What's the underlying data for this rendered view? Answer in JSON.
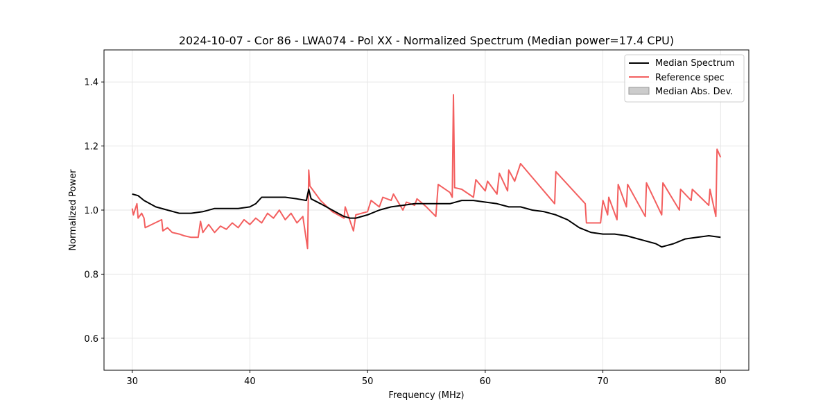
{
  "chart_data": {
    "type": "line",
    "title": "2024-10-07 - Cor 86 - LWA074 - Pol XX - Normalized Spectrum (Median power=17.4 CPU)",
    "xlabel": "Frequency (MHz)",
    "ylabel": "Normalized Power",
    "xlim": [
      27.6,
      82.4
    ],
    "ylim": [
      0.5,
      1.5
    ],
    "xticks": [
      30,
      40,
      50,
      60,
      70,
      80
    ],
    "yticks": [
      0.6,
      0.8,
      1.0,
      1.2,
      1.4
    ],
    "xtick_labels": [
      "30",
      "40",
      "50",
      "60",
      "70",
      "80"
    ],
    "ytick_labels": [
      "0.6",
      "0.8",
      "1.0",
      "1.2",
      "1.4"
    ],
    "grid": true,
    "legend_position": "top-right",
    "legend": [
      "Median Spectrum",
      "Reference spec",
      "Median Abs. Dev."
    ],
    "series": [
      {
        "name": "Median Spectrum",
        "color": "#000000",
        "x": [
          30,
          30.5,
          31,
          31.5,
          32,
          33,
          34,
          35,
          36,
          37,
          38,
          39,
          40,
          40.5,
          41,
          42,
          43,
          44,
          44.8,
          45,
          45.2,
          46,
          47,
          48,
          48.5,
          49,
          50,
          51,
          52,
          53,
          54,
          55,
          56,
          57,
          58,
          59,
          60,
          61,
          62,
          63,
          64,
          65,
          66,
          67,
          68,
          69,
          70,
          71,
          72,
          73,
          74,
          74.5,
          75,
          75.5,
          76,
          77,
          78,
          79,
          80
        ],
        "y": [
          1.05,
          1.045,
          1.03,
          1.02,
          1.01,
          1.0,
          0.99,
          0.99,
          0.995,
          1.005,
          1.005,
          1.005,
          1.01,
          1.02,
          1.04,
          1.04,
          1.04,
          1.035,
          1.03,
          1.065,
          1.035,
          1.02,
          1.0,
          0.98,
          0.975,
          0.975,
          0.985,
          1.0,
          1.01,
          1.015,
          1.02,
          1.02,
          1.02,
          1.02,
          1.03,
          1.03,
          1.025,
          1.02,
          1.01,
          1.01,
          1.0,
          0.995,
          0.985,
          0.97,
          0.945,
          0.93,
          0.925,
          0.925,
          0.92,
          0.91,
          0.9,
          0.895,
          0.885,
          0.89,
          0.895,
          0.91,
          0.915,
          0.92,
          0.915
        ]
      },
      {
        "name": "Reference spec",
        "color": "#f35f5f",
        "x": [
          30,
          30.1,
          30.4,
          30.5,
          30.8,
          31.0,
          31.1,
          32.5,
          32.6,
          33.0,
          33.4,
          34.0,
          34.4,
          35.0,
          35.6,
          35.8,
          36.0,
          36.5,
          37.0,
          37.5,
          38.0,
          38.5,
          39.0,
          39.5,
          40.0,
          40.5,
          41.0,
          41.5,
          42.0,
          42.5,
          43.0,
          43.5,
          44.0,
          44.5,
          44.9,
          45.0,
          45.1,
          46.0,
          47.0,
          48.0,
          48.1,
          48.8,
          49.0,
          50.0,
          50.3,
          51.0,
          51.3,
          52.0,
          52.2,
          53.0,
          53.3,
          54.0,
          54.2,
          55.0,
          55.8,
          56.0,
          57.0,
          57.2,
          57.3,
          57.4,
          58.0,
          59.0,
          59.2,
          60.0,
          60.2,
          61.0,
          61.2,
          61.9,
          62.0,
          62.5,
          63.0,
          65.9,
          66.0,
          68.5,
          68.6,
          69.8,
          70.0,
          70.4,
          70.5,
          71.2,
          71.3,
          72.0,
          72.1,
          73.6,
          73.7,
          75.0,
          75.1,
          76.5,
          76.6,
          77.5,
          77.6,
          79.0,
          79.1,
          79.6,
          79.7,
          80.0
        ],
        "y": [
          1.005,
          0.985,
          1.02,
          0.975,
          0.99,
          0.975,
          0.945,
          0.97,
          0.935,
          0.945,
          0.93,
          0.925,
          0.92,
          0.915,
          0.915,
          0.965,
          0.93,
          0.955,
          0.93,
          0.95,
          0.94,
          0.96,
          0.945,
          0.97,
          0.955,
          0.975,
          0.96,
          0.99,
          0.975,
          1.0,
          0.97,
          0.99,
          0.96,
          0.98,
          0.88,
          1.125,
          1.075,
          1.03,
          0.995,
          0.975,
          1.01,
          0.935,
          0.985,
          0.995,
          1.03,
          1.01,
          1.04,
          1.03,
          1.05,
          1.0,
          1.025,
          1.015,
          1.035,
          1.01,
          0.98,
          1.08,
          1.055,
          1.04,
          1.36,
          1.07,
          1.065,
          1.04,
          1.095,
          1.06,
          1.09,
          1.05,
          1.115,
          1.06,
          1.125,
          1.09,
          1.145,
          1.02,
          1.12,
          1.02,
          0.96,
          0.96,
          1.03,
          0.985,
          1.04,
          0.97,
          1.08,
          1.01,
          1.08,
          0.98,
          1.085,
          0.985,
          1.085,
          1.0,
          1.065,
          1.03,
          1.065,
          1.015,
          1.065,
          0.98,
          1.19,
          1.165
        ]
      }
    ]
  }
}
